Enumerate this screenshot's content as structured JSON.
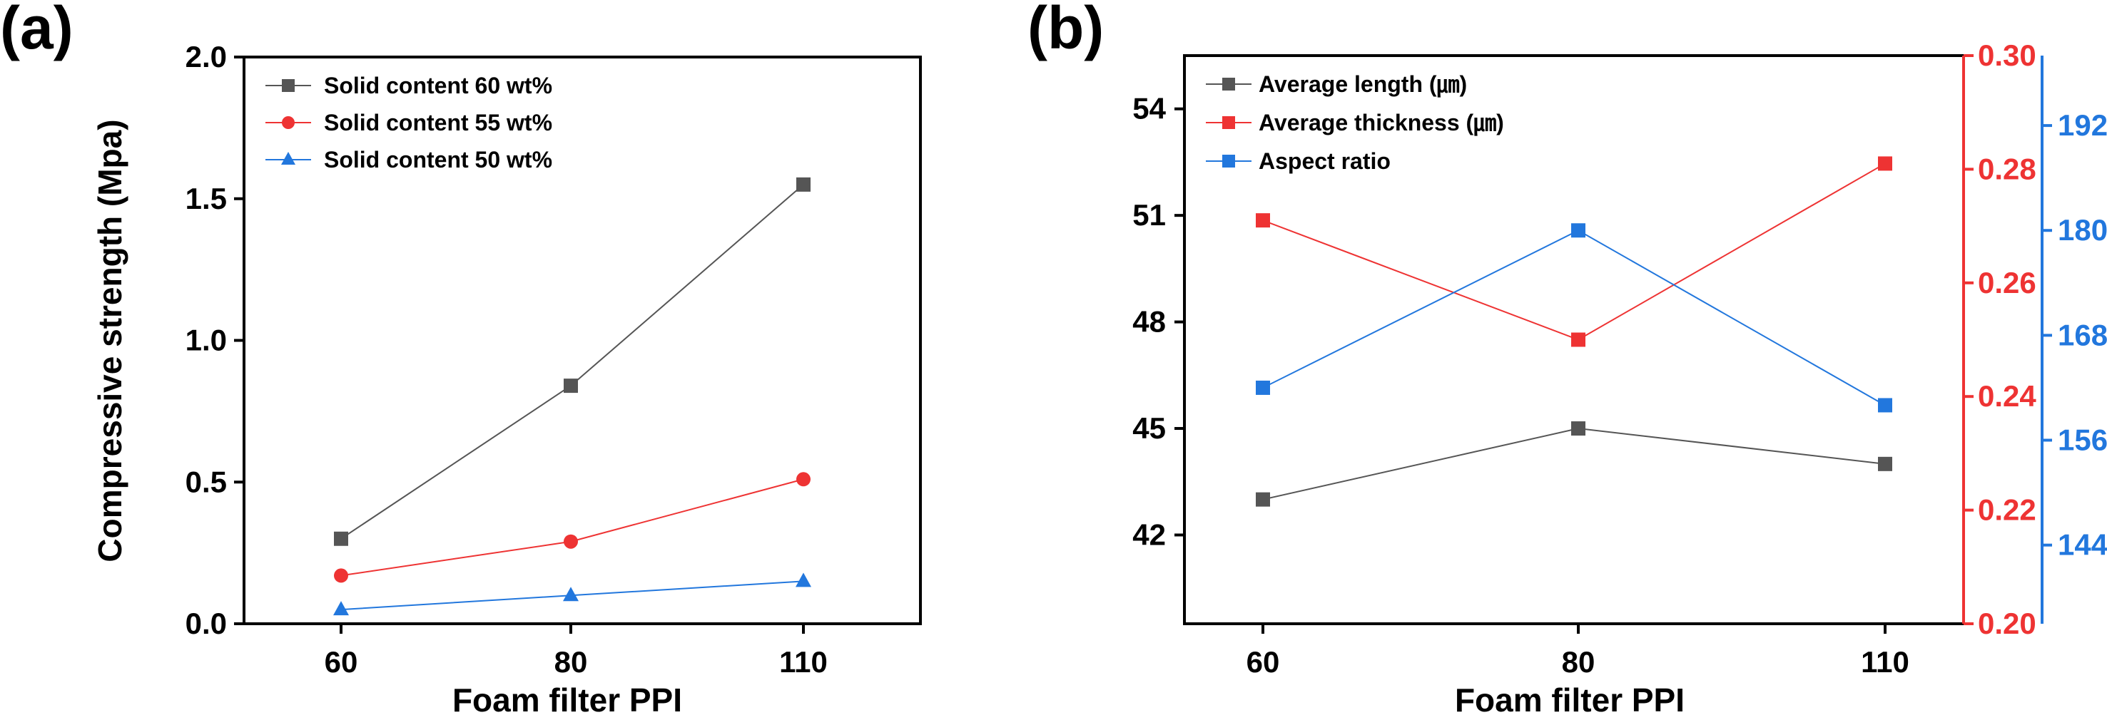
{
  "chart_data": [
    {
      "panel_label": "(a)",
      "type": "line",
      "x": [
        60,
        80,
        110
      ],
      "xticks": [
        "60",
        "80",
        "110"
      ],
      "xlabel": "Foam filter PPI",
      "ylabel": "Compressive strength (Mpa)",
      "ylim": [
        0,
        2.0
      ],
      "yticks": [
        "0.0",
        "0.5",
        "1.0",
        "1.5",
        "2.0"
      ],
      "grid": false,
      "legend_position": "top-left",
      "series": [
        {
          "name": "Solid content 60 wt%",
          "values": [
            0.3,
            0.84,
            1.55
          ],
          "color": "#555555",
          "marker": "square"
        },
        {
          "name": "Solid content 55 wt%",
          "values": [
            0.17,
            0.29,
            0.51
          ],
          "color": "#ee3333",
          "marker": "circle"
        },
        {
          "name": "Solid content 50 wt%",
          "values": [
            0.05,
            0.1,
            0.15
          ],
          "color": "#2277dd",
          "marker": "triangle"
        }
      ]
    },
    {
      "panel_label": "(b)",
      "type": "line",
      "x": [
        60,
        80,
        110
      ],
      "xticks": [
        "60",
        "80",
        "110"
      ],
      "xlabel": "Foam filter PPI",
      "grid": false,
      "legend_position": "top-left",
      "axes": {
        "left": {
          "ylim": [
            39.5,
            55.5
          ],
          "yticks": [
            "42",
            "45",
            "48",
            "51",
            "54"
          ],
          "color": "#000000"
        },
        "right": {
          "ylim": [
            0.2,
            0.3
          ],
          "yticks": [
            "0.20",
            "0.22",
            "0.24",
            "0.26",
            "0.28",
            "0.30"
          ],
          "color": "#ee3333"
        },
        "right2": {
          "ylim": [
            135,
            200
          ],
          "yticks": [
            "144",
            "156",
            "168",
            "180",
            "192"
          ],
          "color": "#2277dd"
        }
      },
      "series": [
        {
          "name": "Average length (㎛)",
          "values": [
            43,
            45,
            44
          ],
          "color": "#555555",
          "marker": "square",
          "axis": "left"
        },
        {
          "name": "Average thickness (㎛)",
          "values": [
            0.271,
            0.25,
            0.281
          ],
          "color": "#ee3333",
          "marker": "square",
          "axis": "right"
        },
        {
          "name": "Aspect ratio",
          "values": [
            162,
            180,
            160
          ],
          "color": "#2277dd",
          "marker": "square",
          "axis": "right2"
        }
      ]
    }
  ]
}
